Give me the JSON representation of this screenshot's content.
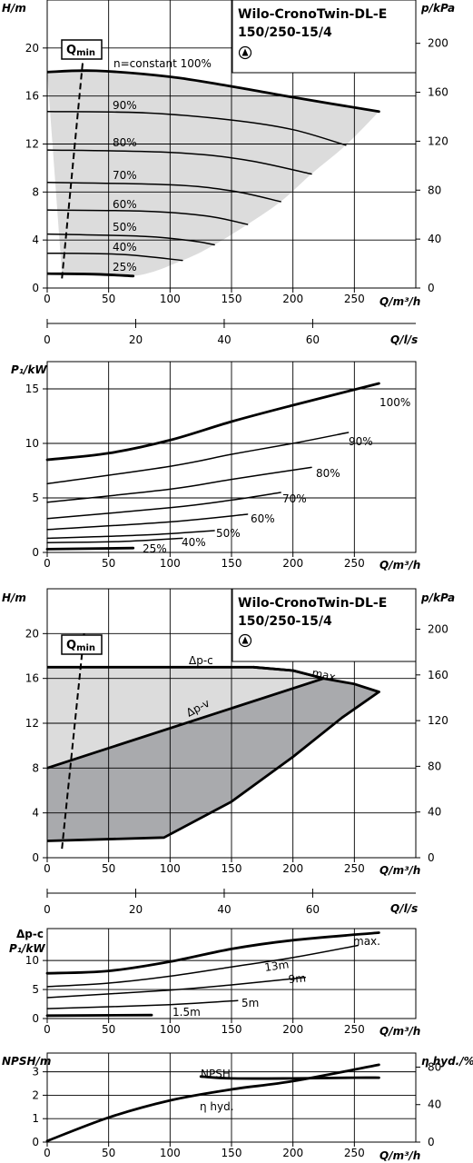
{
  "product": {
    "name": "Wilo-CronoTwin-DL-E",
    "model": "150/250-15/4",
    "symbol": "pump-triangle-icon"
  },
  "units": {
    "h": "H/m",
    "p_kpa": "p/kPa",
    "q_m3h": "Q/m³/h",
    "q_ls": "Q/l/s",
    "p1": "P₁/kW",
    "npsh": "NPSH/m",
    "eta": "η hyd./%"
  },
  "colors": {
    "background": "#ffffff",
    "grid": "#000000",
    "curve": "#000000",
    "area_light": "#dcdcdc",
    "area_dark": "#a9aaad",
    "area_dark_mid": "#c6c7c9"
  },
  "chart_data": [
    {
      "id": "head-speed",
      "type": "line",
      "xlabel": "Q/m³/h",
      "ylabel": "H/m",
      "y2label": "p/kPa",
      "xlim": [
        0,
        300
      ],
      "ylim": [
        0,
        24
      ],
      "y2lim": [
        0,
        235.4
      ],
      "xticks": [
        0,
        50,
        100,
        150,
        200,
        250
      ],
      "yticks": [
        0,
        4,
        8,
        12,
        16,
        20
      ],
      "y2ticks": [
        0,
        40,
        80,
        120,
        160,
        200
      ],
      "qmin_label": "Qmin",
      "qmin_line": [
        [
          12,
          0.8
        ],
        [
          30,
          20
        ]
      ],
      "grid": true,
      "series": [
        {
          "name": "n=constant 100%",
          "points": [
            [
              0,
              18
            ],
            [
              40,
              18.1
            ],
            [
              100,
              17.6
            ],
            [
              150,
              16.8
            ],
            [
              200,
              15.9
            ],
            [
              270,
              14.7
            ]
          ]
        },
        {
          "name": "90%",
          "points": [
            [
              0,
              14.7
            ],
            [
              80,
              14.6
            ],
            [
              150,
              14
            ],
            [
              200,
              13.2
            ],
            [
              243,
              11.9
            ]
          ]
        },
        {
          "name": "80%",
          "points": [
            [
              0,
              11.5
            ],
            [
              100,
              11.3
            ],
            [
              160,
              10.7
            ],
            [
              215,
              9.5
            ]
          ]
        },
        {
          "name": "70%",
          "points": [
            [
              0,
              8.8
            ],
            [
              100,
              8.6
            ],
            [
              150,
              8.1
            ],
            [
              190,
              7.2
            ]
          ]
        },
        {
          "name": "60%",
          "points": [
            [
              0,
              6.5
            ],
            [
              80,
              6.4
            ],
            [
              130,
              6
            ],
            [
              163,
              5.3
            ]
          ]
        },
        {
          "name": "50%",
          "points": [
            [
              0,
              4.5
            ],
            [
              80,
              4.3
            ],
            [
              120,
              3.9
            ],
            [
              136,
              3.6
            ]
          ]
        },
        {
          "name": "40%",
          "points": [
            [
              0,
              2.9
            ],
            [
              60,
              2.8
            ],
            [
              110,
              2.3
            ]
          ]
        },
        {
          "name": "25%",
          "points": [
            [
              0,
              1.2
            ],
            [
              40,
              1.15
            ],
            [
              70,
              1.0
            ]
          ]
        }
      ],
      "area_boundary": [
        [
          12,
          1.2
        ],
        [
          70,
          1.0
        ],
        [
          110,
          2.3
        ],
        [
          136,
          3.6
        ],
        [
          163,
          5.3
        ],
        [
          190,
          7.2
        ],
        [
          215,
          9.5
        ],
        [
          243,
          11.9
        ],
        [
          270,
          14.7
        ]
      ],
      "secondary_axis": {
        "label": "Q/l/s",
        "ticks": [
          0,
          20,
          40,
          60
        ],
        "max": 83.3
      }
    },
    {
      "id": "power-speed",
      "type": "line",
      "xlabel": "Q/m³/h",
      "ylabel": "P₁/kW",
      "xlim": [
        0,
        300
      ],
      "ylim": [
        0,
        17.5
      ],
      "xticks": [
        0,
        50,
        100,
        150,
        200,
        250
      ],
      "yticks": [
        0,
        5,
        10,
        15
      ],
      "grid": true,
      "series": [
        {
          "name": "100%",
          "points": [
            [
              0,
              8.5
            ],
            [
              50,
              9.1
            ],
            [
              100,
              10.3
            ],
            [
              150,
              12
            ],
            [
              200,
              13.5
            ],
            [
              270,
              15.5
            ]
          ]
        },
        {
          "name": "90%",
          "points": [
            [
              0,
              6.3
            ],
            [
              100,
              7.9
            ],
            [
              150,
              9
            ],
            [
              200,
              10
            ],
            [
              245,
              11
            ]
          ]
        },
        {
          "name": "80%",
          "points": [
            [
              0,
              4.6
            ],
            [
              100,
              5.8
            ],
            [
              150,
              6.7
            ],
            [
              215,
              7.8
            ]
          ]
        },
        {
          "name": "70%",
          "points": [
            [
              0,
              3.1
            ],
            [
              100,
              4.1
            ],
            [
              150,
              4.8
            ],
            [
              190,
              5.5
            ]
          ]
        },
        {
          "name": "60%",
          "points": [
            [
              0,
              2.1
            ],
            [
              100,
              2.8
            ],
            [
              163,
              3.5
            ]
          ]
        },
        {
          "name": "50%",
          "points": [
            [
              0,
              1.3
            ],
            [
              80,
              1.6
            ],
            [
              136,
              2.0
            ]
          ]
        },
        {
          "name": "40%",
          "points": [
            [
              0,
              0.9
            ],
            [
              60,
              1.0
            ],
            [
              110,
              1.3
            ]
          ]
        },
        {
          "name": "25%",
          "points": [
            [
              0,
              0.3
            ],
            [
              70,
              0.4
            ]
          ]
        }
      ]
    },
    {
      "id": "head-control",
      "type": "area",
      "xlabel": "Q/m³/h",
      "ylabel": "H/m",
      "y2label": "p/kPa",
      "xlim": [
        0,
        300
      ],
      "ylim": [
        0,
        24
      ],
      "y2lim": [
        0,
        235.4
      ],
      "xticks": [
        0,
        50,
        100,
        150,
        200,
        250
      ],
      "yticks": [
        0,
        4,
        8,
        12,
        16,
        20
      ],
      "y2ticks": [
        0,
        40,
        80,
        120,
        160,
        200
      ],
      "qmin_label": "Qmin",
      "qmin_line": [
        [
          12,
          0.8
        ],
        [
          30,
          20
        ]
      ],
      "grid": true,
      "series": [
        {
          "name": "Δp-c",
          "points": [
            [
              0,
              17
            ],
            [
              168,
              17
            ],
            [
              200,
              16.7
            ],
            [
              225,
              16
            ]
          ]
        },
        {
          "name": "Δp-v",
          "points": [
            [
              0,
              8
            ],
            [
              225,
              16
            ]
          ]
        },
        {
          "name": "max.",
          "points": [
            [
              168,
              17
            ],
            [
              200,
              16.7
            ],
            [
              225,
              16
            ],
            [
              250,
              15.5
            ],
            [
              270,
              14.8
            ]
          ]
        },
        {
          "name": "",
          "points": [
            [
              0,
              1.5
            ],
            [
              95,
              1.8
            ],
            [
              150,
              5
            ],
            [
              200,
              9
            ],
            [
              240,
              12.5
            ],
            [
              270,
              14.8
            ]
          ]
        }
      ],
      "outline": [
        [
          0,
          17
        ],
        [
          168,
          17
        ],
        [
          200,
          16.7
        ],
        [
          225,
          16
        ],
        [
          250,
          15.5
        ],
        [
          270,
          14.8
        ],
        [
          240,
          12.5
        ],
        [
          200,
          9
        ],
        [
          150,
          5
        ],
        [
          95,
          1.8
        ],
        [
          0,
          1.5
        ]
      ],
      "dark_area": [
        [
          0,
          8
        ],
        [
          225,
          16
        ],
        [
          250,
          15.5
        ],
        [
          270,
          14.8
        ],
        [
          240,
          12.5
        ],
        [
          200,
          9
        ],
        [
          150,
          5
        ],
        [
          95,
          1.8
        ],
        [
          0,
          1.5
        ]
      ],
      "secondary_axis": {
        "label": "Q/l/s",
        "ticks": [
          0,
          20,
          40,
          60
        ],
        "max": 83.3
      }
    },
    {
      "id": "power-control",
      "type": "line",
      "xlabel": "Q/m³/h",
      "ylabel": "P₁/kW",
      "ylabel_top": "Δp-c",
      "xlim": [
        0,
        300
      ],
      "ylim": [
        0,
        15.5
      ],
      "xticks": [
        0,
        50,
        100,
        150,
        200,
        250
      ],
      "yticks": [
        0,
        5,
        10
      ],
      "grid": true,
      "series": [
        {
          "name": "max.",
          "points": [
            [
              0,
              7.8
            ],
            [
              50,
              8.2
            ],
            [
              100,
              9.8
            ],
            [
              150,
              12
            ],
            [
              200,
              13.5
            ],
            [
              270,
              14.8
            ]
          ]
        },
        {
          "name": "13m",
          "points": [
            [
              0,
              5.5
            ],
            [
              50,
              6.1
            ],
            [
              100,
              7.3
            ],
            [
              150,
              8.9
            ],
            [
              200,
              10.5
            ],
            [
              253,
              12.6
            ]
          ]
        },
        {
          "name": "9m",
          "points": [
            [
              0,
              3.6
            ],
            [
              100,
              4.9
            ],
            [
              150,
              5.8
            ],
            [
              210,
              7.1
            ]
          ]
        },
        {
          "name": "5m",
          "points": [
            [
              0,
              1.7
            ],
            [
              100,
              2.4
            ],
            [
              155,
              3.1
            ]
          ]
        },
        {
          "name": "1.5m",
          "points": [
            [
              0,
              0.5
            ],
            [
              85,
              0.6
            ]
          ]
        }
      ]
    },
    {
      "id": "npsh-eta",
      "type": "line",
      "xlabel": "Q/m³/h",
      "ylabel": "NPSH/m",
      "y2label": "η hyd./%",
      "xlim": [
        0,
        300
      ],
      "ylim": [
        0,
        3.8
      ],
      "y2lim": [
        0,
        95
      ],
      "xticks": [
        0,
        50,
        100,
        150,
        200,
        250
      ],
      "yticks": [
        0,
        1,
        2,
        3
      ],
      "y2ticks": [
        0,
        40,
        80
      ],
      "grid": true,
      "series": [
        {
          "name": "NPSH",
          "points": [
            [
              125,
              2.8
            ],
            [
              150,
              2.72
            ],
            [
              200,
              2.72
            ],
            [
              250,
              2.75
            ],
            [
              270,
              2.75
            ]
          ]
        },
        {
          "name": "η hyd.",
          "points": [
            [
              0,
              0.05
            ],
            [
              50,
              1.05
            ],
            [
              100,
              1.78
            ],
            [
              150,
              2.25
            ],
            [
              200,
              2.6
            ],
            [
              270,
              3.3
            ]
          ]
        }
      ]
    }
  ]
}
